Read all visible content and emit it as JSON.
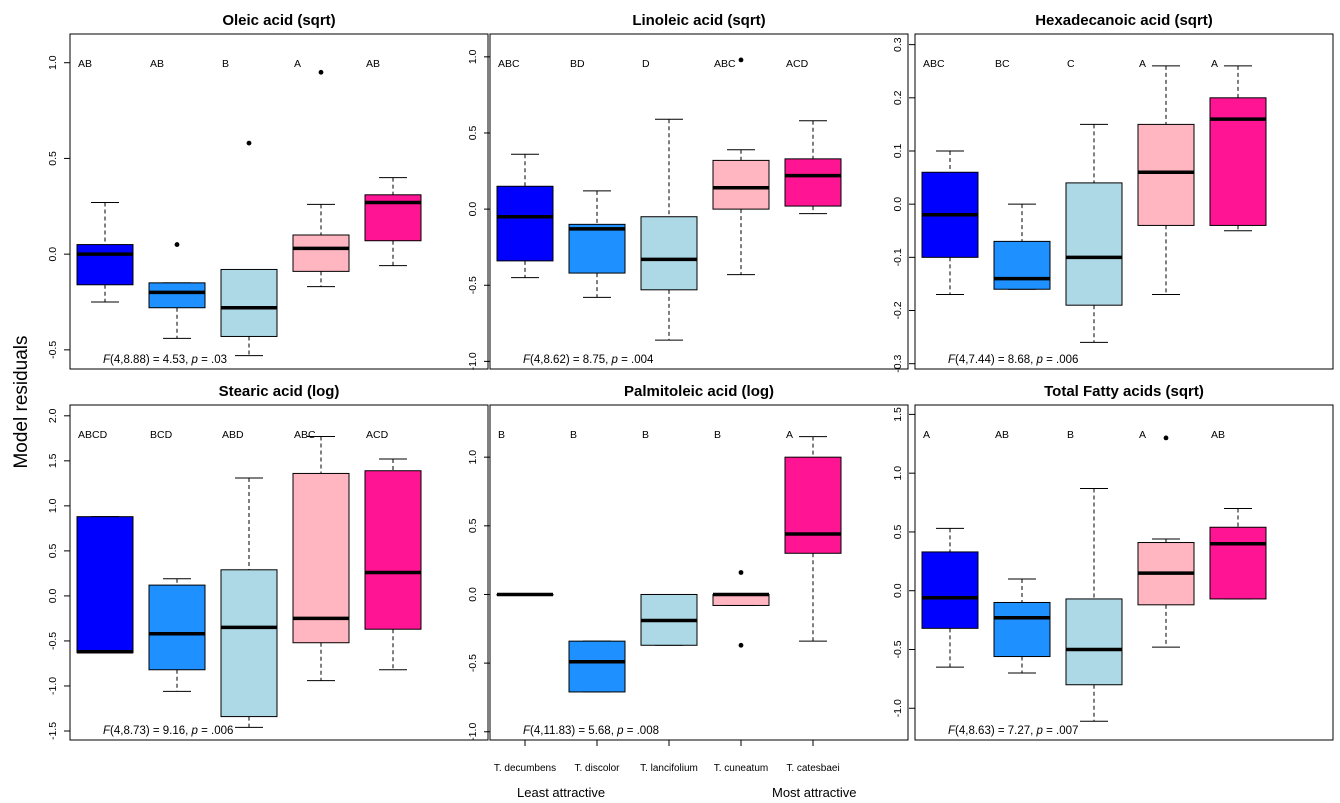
{
  "figure": {
    "ylabel": "Model residuals",
    "x_categories": [
      "T. decumbens",
      "T. discolor",
      "T. lancifolium",
      "T. cuneatum",
      "T. catesbaei"
    ],
    "x_caption_left": "Least attractive",
    "x_caption_right": "Most attractive",
    "box_colors": [
      "#0000FF",
      "#1E90FF",
      "#ADD8E6",
      "#FFB6C1",
      "#FF1493"
    ]
  },
  "chart_data": [
    {
      "type": "boxplot",
      "title": "Oleic acid (sqrt)",
      "categories": [
        "T. decumbens",
        "T. discolor",
        "T. lancifolium",
        "T. cuneatum",
        "T. catesbaei"
      ],
      "yticks": [
        -0.5,
        0.0,
        0.5,
        1.0
      ],
      "tick_labels": [
        "-0.5",
        "0.0",
        "0.5",
        "1.0"
      ],
      "ylim": [
        -0.6,
        1.15
      ],
      "letters": [
        "AB",
        "AB",
        "B",
        "A",
        "AB"
      ],
      "boxes": [
        {
          "min": -0.25,
          "q1": -0.16,
          "median": 0.0,
          "q3": 0.05,
          "max": 0.27,
          "outliers": []
        },
        {
          "min": -0.44,
          "q1": -0.28,
          "median": -0.2,
          "q3": -0.15,
          "max": -0.15,
          "outliers": [
            0.05
          ]
        },
        {
          "min": -0.53,
          "q1": -0.43,
          "median": -0.28,
          "q3": -0.08,
          "max": -0.08,
          "outliers": [
            0.58
          ]
        },
        {
          "min": -0.17,
          "q1": -0.09,
          "median": 0.03,
          "q3": 0.1,
          "max": 0.26,
          "outliers": [
            0.95
          ]
        },
        {
          "min": -0.06,
          "q1": 0.07,
          "median": 0.27,
          "q3": 0.31,
          "max": 0.4,
          "outliers": []
        }
      ],
      "stat_prefix": "F",
      "stat_mid": "(4,8.88) = 4.53, ",
      "stat_p": "p",
      "stat_suffix": " = .03"
    },
    {
      "type": "boxplot",
      "title": "Linoleic acid (sqrt)",
      "categories": [
        "T. decumbens",
        "T. discolor",
        "T. lancifolium",
        "T. cuneatum",
        "T. catesbaei"
      ],
      "yticks": [
        -1.0,
        -0.5,
        0.0,
        0.5,
        1.0
      ],
      "tick_labels": [
        "-1.0",
        "-0.5",
        "0.0",
        "0.5",
        "1.0"
      ],
      "ylim": [
        -1.05,
        1.15
      ],
      "letters": [
        "ABC",
        "BD",
        "D",
        "ABC",
        "ACD"
      ],
      "boxes": [
        {
          "min": -0.45,
          "q1": -0.34,
          "median": -0.05,
          "q3": 0.15,
          "max": 0.36,
          "outliers": []
        },
        {
          "min": -0.58,
          "q1": -0.42,
          "median": -0.13,
          "q3": -0.1,
          "max": 0.12,
          "outliers": []
        },
        {
          "min": -0.86,
          "q1": -0.53,
          "median": -0.33,
          "q3": -0.05,
          "max": 0.59,
          "outliers": []
        },
        {
          "min": -0.43,
          "q1": 0.0,
          "median": 0.14,
          "q3": 0.32,
          "max": 0.39,
          "outliers": [
            0.98
          ]
        },
        {
          "min": -0.03,
          "q1": 0.02,
          "median": 0.22,
          "q3": 0.33,
          "max": 0.58,
          "outliers": []
        }
      ],
      "stat_prefix": "F",
      "stat_mid": "(4,8.62) = 8.75, ",
      "stat_p": "p",
      "stat_suffix": " = .004"
    },
    {
      "type": "boxplot",
      "title": "Hexadecanoic acid (sqrt)",
      "categories": [
        "T. decumbens",
        "T. discolor",
        "T. lancifolium",
        "T. cuneatum",
        "T. catesbaei"
      ],
      "yticks": [
        -0.3,
        -0.2,
        -0.1,
        0.0,
        0.1,
        0.2,
        0.3
      ],
      "tick_labels": [
        "-0.3",
        "-0.2",
        "-0.1",
        "0.0",
        "0.1",
        "0.2",
        "0.3"
      ],
      "ylim": [
        -0.31,
        0.32
      ],
      "letters": [
        "ABC",
        "BC",
        "C",
        "A",
        "A"
      ],
      "boxes": [
        {
          "min": -0.17,
          "q1": -0.1,
          "median": -0.02,
          "q3": 0.06,
          "max": 0.1,
          "outliers": []
        },
        {
          "min": -0.16,
          "q1": -0.16,
          "median": -0.14,
          "q3": -0.07,
          "max": 0.0,
          "outliers": []
        },
        {
          "min": -0.26,
          "q1": -0.19,
          "median": -0.1,
          "q3": 0.04,
          "max": 0.15,
          "outliers": []
        },
        {
          "min": -0.17,
          "q1": -0.04,
          "median": 0.06,
          "q3": 0.15,
          "max": 0.26,
          "outliers": []
        },
        {
          "min": -0.05,
          "q1": -0.04,
          "median": 0.16,
          "q3": 0.2,
          "max": 0.26,
          "outliers": []
        }
      ],
      "stat_prefix": "F",
      "stat_mid": "(4,7.44) = 8.68, ",
      "stat_p": "p",
      "stat_suffix": " = .006"
    },
    {
      "type": "boxplot",
      "title": "Stearic acid (log)",
      "categories": [
        "T. decumbens",
        "T. discolor",
        "T. lancifolium",
        "T. cuneatum",
        "T. catesbaei"
      ],
      "yticks": [
        -1.5,
        -1.0,
        -0.5,
        0.0,
        0.5,
        1.0,
        1.5,
        2.0
      ],
      "tick_labels": [
        "-1.5",
        "-1.0",
        "-0.5",
        "0.0",
        "0.5",
        "1.0",
        "1.5",
        "2.0"
      ],
      "ylim": [
        -1.6,
        2.12
      ],
      "letters": [
        "ABCD",
        "BCD",
        "ABD",
        "ABC",
        "ACD"
      ],
      "boxes": [
        {
          "min": -0.63,
          "q1": -0.63,
          "median": -0.62,
          "q3": 0.88,
          "max": 0.88,
          "outliers": []
        },
        {
          "min": -1.06,
          "q1": -0.82,
          "median": -0.42,
          "q3": 0.12,
          "max": 0.19,
          "outliers": []
        },
        {
          "min": -1.46,
          "q1": -1.34,
          "median": -0.35,
          "q3": 0.29,
          "max": 1.31,
          "outliers": []
        },
        {
          "min": -0.94,
          "q1": -0.52,
          "median": -0.25,
          "q3": 1.36,
          "max": 1.77,
          "outliers": []
        },
        {
          "min": -0.82,
          "q1": -0.37,
          "median": 0.26,
          "q3": 1.39,
          "max": 1.52,
          "outliers": []
        }
      ],
      "stat_prefix": "F",
      "stat_mid": "(4,8.73) = 9.16, ",
      "stat_p": "p",
      "stat_suffix": " = .006"
    },
    {
      "type": "boxplot",
      "title": "Palmitoleic acid (log)",
      "categories": [
        "T. decumbens",
        "T. discolor",
        "T. lancifolium",
        "T. cuneatum",
        "T. catesbaei"
      ],
      "yticks": [
        -1.0,
        -0.5,
        0.0,
        0.5,
        1.0
      ],
      "tick_labels": [
        "-1.0",
        "-0.5",
        "0.0",
        "0.5",
        "1.0"
      ],
      "ylim": [
        -1.06,
        1.38
      ],
      "letters": [
        "B",
        "B",
        "B",
        "B",
        "A"
      ],
      "boxes": [
        {
          "min": 0.0,
          "q1": 0.0,
          "median": 0.0,
          "q3": 0.0,
          "max": 0.0,
          "outliers": []
        },
        {
          "min": -0.71,
          "q1": -0.71,
          "median": -0.49,
          "q3": -0.34,
          "max": -0.34,
          "outliers": []
        },
        {
          "min": -0.37,
          "q1": -0.37,
          "median": -0.19,
          "q3": 0.0,
          "max": 0.0,
          "outliers": []
        },
        {
          "min": -0.08,
          "q1": -0.08,
          "median": 0.0,
          "q3": 0.0,
          "max": 0.0,
          "outliers": [
            0.16,
            -0.37
          ]
        },
        {
          "min": -0.34,
          "q1": 0.3,
          "median": 0.44,
          "q3": 1.0,
          "max": 1.15,
          "outliers": []
        }
      ],
      "stat_prefix": "F",
      "stat_mid": "(4,11.83) = 5.68, ",
      "stat_p": "p",
      "stat_suffix": " = .008"
    },
    {
      "type": "boxplot",
      "title": "Total Fatty acids (sqrt)",
      "categories": [
        "T. decumbens",
        "T. discolor",
        "T. lancifolium",
        "T. cuneatum",
        "T. catesbaei"
      ],
      "yticks": [
        -1.0,
        -0.5,
        0.0,
        0.5,
        1.0,
        1.5
      ],
      "tick_labels": [
        "-1.0",
        "-0.5",
        "0.0",
        "0.5",
        "1.0",
        "1.5"
      ],
      "ylim": [
        -1.27,
        1.58
      ],
      "letters": [
        "A",
        "AB",
        "B",
        "A",
        "AB"
      ],
      "boxes": [
        {
          "min": -0.65,
          "q1": -0.32,
          "median": -0.06,
          "q3": 0.33,
          "max": 0.53,
          "outliers": []
        },
        {
          "min": -0.7,
          "q1": -0.56,
          "median": -0.23,
          "q3": -0.1,
          "max": 0.1,
          "outliers": []
        },
        {
          "min": -1.11,
          "q1": -0.8,
          "median": -0.5,
          "q3": -0.07,
          "max": 0.87,
          "outliers": []
        },
        {
          "min": -0.48,
          "q1": -0.12,
          "median": 0.15,
          "q3": 0.41,
          "max": 0.44,
          "outliers": [
            1.3
          ]
        },
        {
          "min": -0.07,
          "q1": -0.07,
          "median": 0.4,
          "q3": 0.54,
          "max": 0.7,
          "outliers": []
        }
      ],
      "stat_prefix": "F",
      "stat_mid": "(4,8.63) = 7.27, ",
      "stat_p": "p",
      "stat_suffix": " = .007"
    }
  ]
}
